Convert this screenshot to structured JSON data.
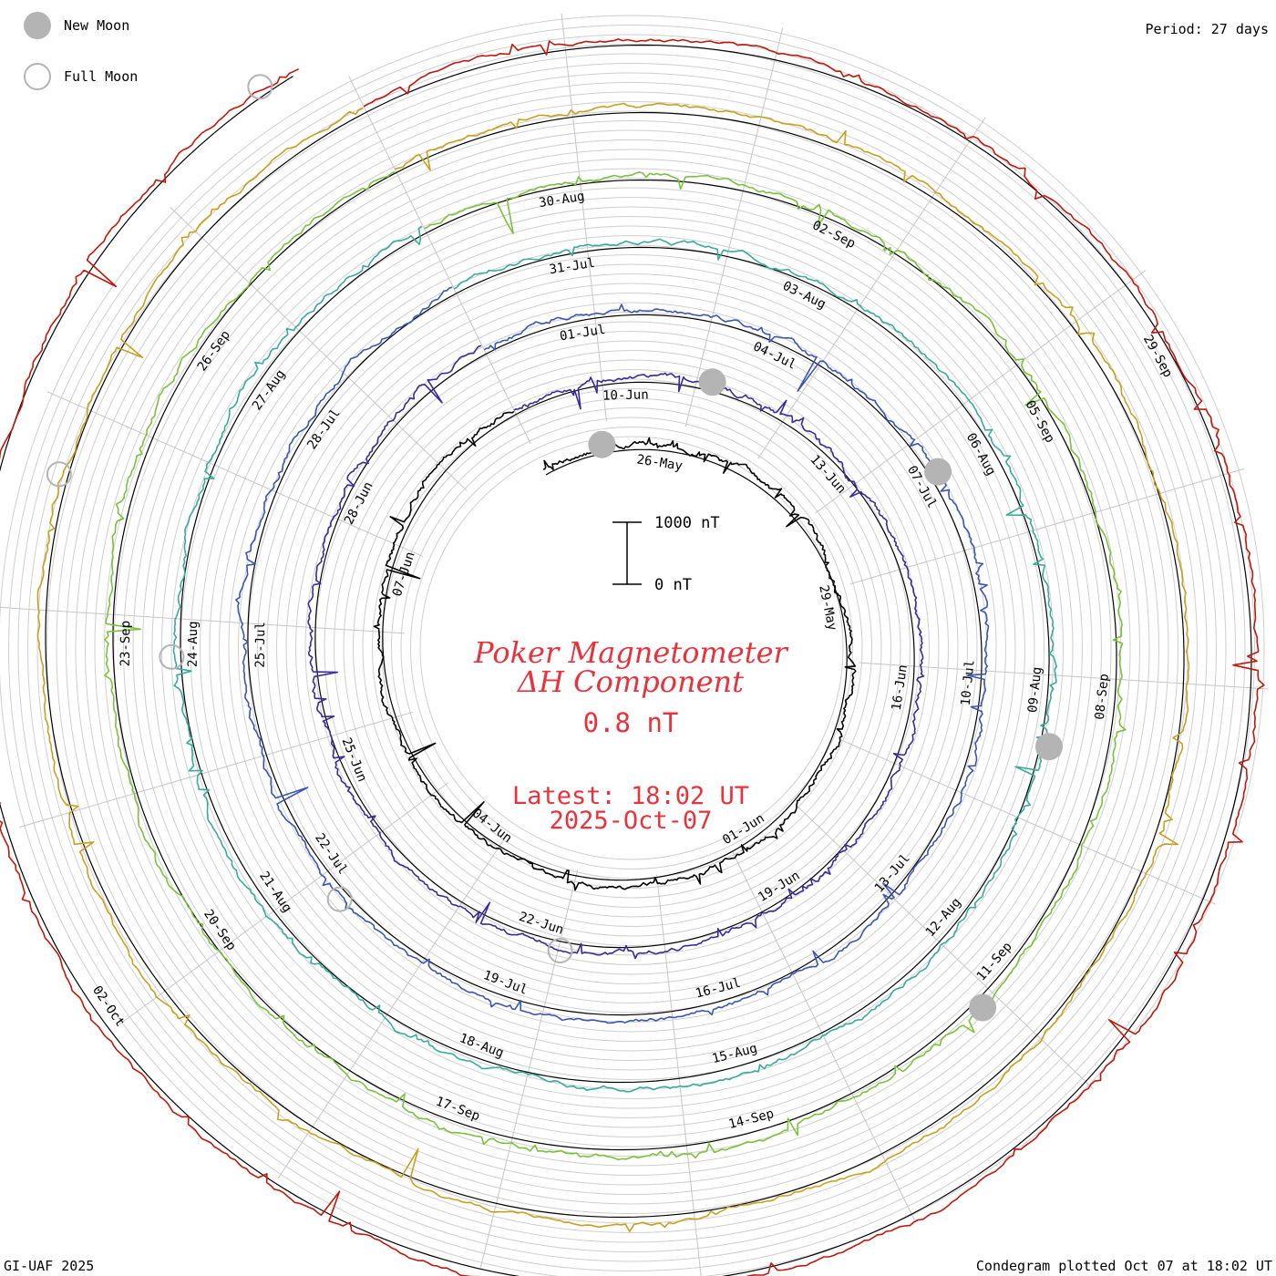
{
  "legend": {
    "new_moon": {
      "label": "New Moon",
      "color": "#b4b4b4"
    },
    "full_moon": {
      "label": "Full Moon",
      "color": "#b4b4b4"
    }
  },
  "period_text": "Period: 27 days",
  "footer": {
    "credit": "GI-UAF 2025",
    "plotted": "Condegram plotted Oct 07 at 18:02 UT"
  },
  "center": {
    "title_line1": "Poker Magnetometer",
    "title_line2": "ΔH Component",
    "current_value": "0.8 nT",
    "latest_line1": "Latest: 18:02 UT",
    "latest_line2": "2025-Oct-07",
    "accent_color": "#e8323c"
  },
  "scale_bar": {
    "top_label": "1000 nT",
    "bottom_label": "0 nT"
  },
  "chart_data": {
    "type": "line",
    "title": "Poker Magnetometer ΔH Component",
    "period_days": 27,
    "units": "nT",
    "scale_nT": [
      0,
      1000
    ],
    "rings": [
      {
        "index": 0,
        "color": "#000000",
        "labels": [
          "26-May",
          "29-May",
          "01-Jun",
          "04-Jun",
          "07-Jun"
        ]
      },
      {
        "index": 1,
        "color": "#3a2a9a",
        "labels": [
          "10-Jun",
          "13-Jun",
          "16-Jun",
          "19-Jun",
          "22-Jun",
          "25-Jun",
          "28-Jun"
        ]
      },
      {
        "index": 2,
        "color": "#3a56b4",
        "labels": [
          "01-Jul",
          "04-Jul",
          "07-Jul",
          "10-Jul",
          "13-Jul",
          "16-Jul",
          "19-Jul",
          "22-Jul",
          "25-Jul",
          "28-Jul"
        ]
      },
      {
        "index": 3,
        "color": "#3aaa9c",
        "labels": [
          "31-Jul",
          "03-Aug",
          "06-Aug",
          "09-Aug",
          "12-Aug",
          "15-Aug",
          "18-Aug",
          "21-Aug",
          "24-Aug",
          "27-Aug"
        ]
      },
      {
        "index": 4,
        "color": "#7cc03c",
        "labels": [
          "30-Aug",
          "02-Sep",
          "05-Sep",
          "08-Sep",
          "11-Sep",
          "14-Sep",
          "17-Sep",
          "20-Sep",
          "23-Sep",
          "26-Sep"
        ]
      },
      {
        "index": 5,
        "color": "#c8a020",
        "labels": []
      },
      {
        "index": 6,
        "color": "#c0180c",
        "labels": [
          "29-Sep",
          "02-Oct"
        ]
      }
    ],
    "moon_phases": [
      {
        "type": "new",
        "ring": 0,
        "turn": 0.05
      },
      {
        "type": "new",
        "ring": 1,
        "turn": 0.12
      },
      {
        "type": "new",
        "ring": 2,
        "turn": 0.24
      },
      {
        "type": "new",
        "ring": 3,
        "turn": 0.36
      },
      {
        "type": "new",
        "ring": 4,
        "turn": 0.45
      },
      {
        "type": "full",
        "ring": 1,
        "turn": 0.61
      },
      {
        "type": "full",
        "ring": 2,
        "turn": 0.71
      },
      {
        "type": "full",
        "ring": 3,
        "turn": 0.82
      },
      {
        "type": "full",
        "ring": 5,
        "turn": 0.87
      },
      {
        "type": "full",
        "ring": 6,
        "turn": 0.98
      }
    ]
  }
}
